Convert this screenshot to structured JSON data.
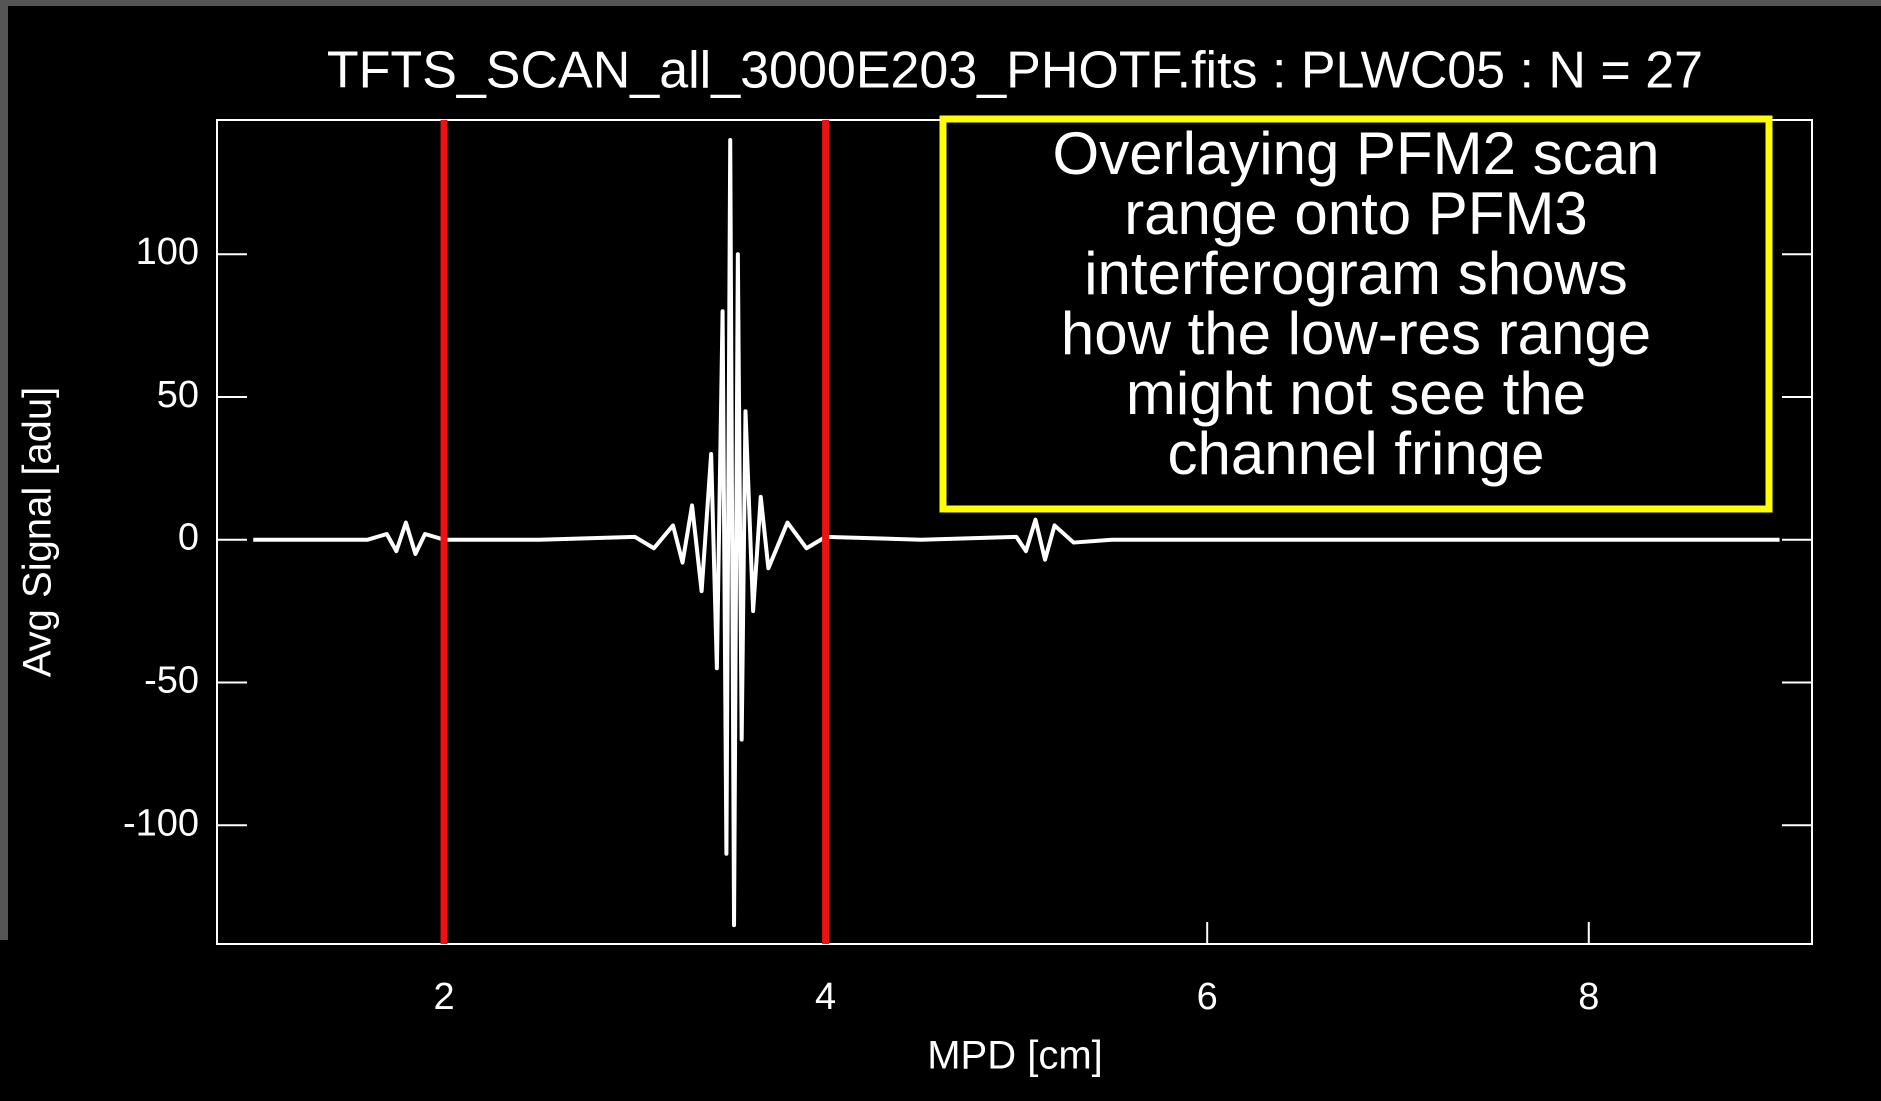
{
  "chart_data": {
    "type": "line",
    "title": "TFTS_SCAN_all_3000E203_PHOTF.fits : PLWC05 : N =  27",
    "xlabel": "MPD [cm]",
    "ylabel": "Avg Signal [adu]",
    "xlim": [
      0.81,
      9.17
    ],
    "ylim": [
      -141.6,
      147
    ],
    "xticks": [
      2,
      4,
      6,
      8
    ],
    "yticks": [
      -100,
      -50,
      0,
      50,
      100
    ],
    "x": [
      1.0,
      1.6,
      1.7,
      1.75,
      1.8,
      1.85,
      1.9,
      2.0,
      2.5,
      3.0,
      3.1,
      3.2,
      3.25,
      3.3,
      3.35,
      3.4,
      3.43,
      3.46,
      3.48,
      3.5,
      3.52,
      3.54,
      3.56,
      3.58,
      3.62,
      3.66,
      3.7,
      3.8,
      3.9,
      4.0,
      4.5,
      5.0,
      5.05,
      5.1,
      5.15,
      5.2,
      5.3,
      5.5,
      7.0,
      9.0
    ],
    "series": [
      {
        "color": "#ffffff",
        "values": [
          0,
          0,
          2,
          -4,
          6,
          -5,
          2,
          0,
          0,
          1,
          -3,
          5,
          -8,
          12,
          -18,
          30,
          -45,
          80,
          -110,
          140,
          -135,
          100,
          -70,
          45,
          -25,
          15,
          -10,
          6,
          -3,
          1,
          0,
          1,
          -4,
          7,
          -7,
          5,
          -1,
          0,
          0,
          0
        ]
      }
    ],
    "vlines": [
      {
        "x": 2,
        "color": "#ee1111"
      },
      {
        "x": 4,
        "color": "#ee1111"
      }
    ],
    "annotation": {
      "lines": [
        "Overlaying PFM2 scan",
        "range onto PFM3",
        "interferogram shows",
        "how the low-res range",
        "might not see the",
        "channel fringe"
      ],
      "color": "#ffff00"
    }
  }
}
